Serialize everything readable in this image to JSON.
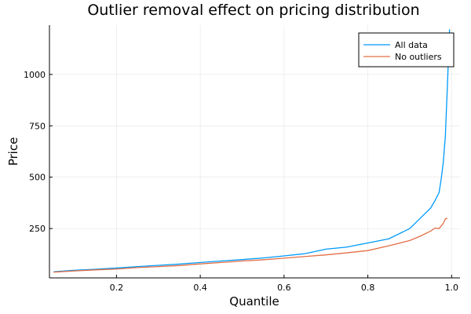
{
  "chart_data": {
    "type": "line",
    "title": "Outlier removal effect on pricing distribution",
    "xlabel": "Quantile",
    "ylabel": "Price",
    "xlim": [
      0.04,
      1.02
    ],
    "ylim": [
      10,
      1240
    ],
    "xticks": [
      0.2,
      0.4,
      0.6,
      0.8,
      1.0
    ],
    "xtick_labels": [
      "0.2",
      "0.4",
      "0.6",
      "0.8",
      "1.0"
    ],
    "yticks": [
      250,
      500,
      750,
      1000
    ],
    "ytick_labels": [
      "250",
      "500",
      "750",
      "1000"
    ],
    "grid": true,
    "legend_position": "top-right",
    "series": [
      {
        "name": "All data",
        "color": "#009af9",
        "x": [
          0.05,
          0.1,
          0.15,
          0.2,
          0.25,
          0.3,
          0.35,
          0.4,
          0.45,
          0.5,
          0.55,
          0.6,
          0.65,
          0.7,
          0.75,
          0.8,
          0.85,
          0.9,
          0.925,
          0.95,
          0.96,
          0.97,
          0.975,
          0.98,
          0.985,
          0.99,
          0.995
        ],
        "y": [
          40,
          47,
          52,
          58,
          65,
          71,
          77,
          85,
          92,
          99,
          107,
          117,
          128,
          150,
          160,
          180,
          200,
          250,
          300,
          350,
          385,
          425,
          490,
          570,
          700,
          950,
          1220
        ]
      },
      {
        "name": "No outliers",
        "color": "#e26f46",
        "x": [
          0.05,
          0.1,
          0.15,
          0.2,
          0.25,
          0.3,
          0.35,
          0.4,
          0.45,
          0.5,
          0.55,
          0.6,
          0.65,
          0.7,
          0.75,
          0.8,
          0.85,
          0.9,
          0.925,
          0.95,
          0.96,
          0.97,
          0.975,
          0.98,
          0.985,
          0.99
        ],
        "y": [
          38,
          44,
          49,
          53,
          60,
          65,
          70,
          78,
          85,
          92,
          98,
          106,
          114,
          122,
          132,
          143,
          166,
          192,
          213,
          238,
          252,
          250,
          262,
          275,
          297,
          300
        ]
      }
    ]
  }
}
